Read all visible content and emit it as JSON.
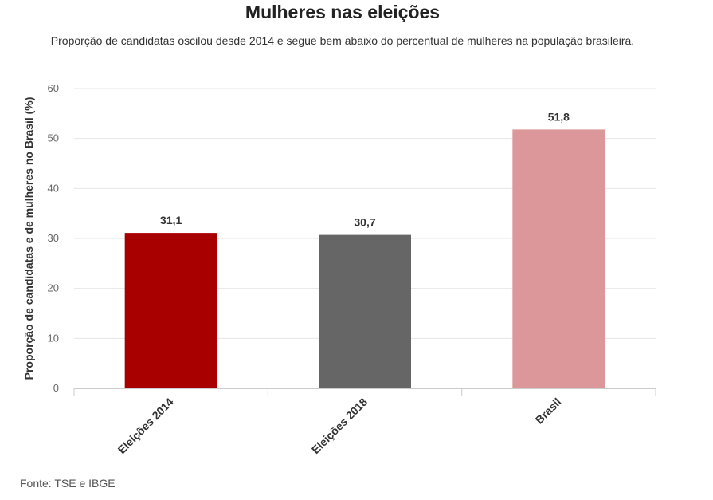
{
  "chart_data": {
    "type": "bar",
    "title": "Mulheres nas eleições",
    "subtitle": "Proporção de candidatas oscilou desde 2014 e segue bem abaixo do percentual de mulheres na população brasileira.",
    "categories": [
      "Eleições 2014",
      "Eleições 2018",
      "Brasil"
    ],
    "values": [
      31.1,
      30.7,
      51.8
    ],
    "value_labels": [
      "31,1",
      "30,7",
      "51,8"
    ],
    "colors": [
      "#a80000",
      "#666666",
      "#db9799"
    ],
    "ylabel": "Proporção de candidatas e de mulheres no Brasil (%)",
    "xlabel": "",
    "ylim": [
      0,
      60
    ],
    "yticks": [
      0,
      10,
      20,
      30,
      40,
      50,
      60
    ],
    "grid": true,
    "legend": "none",
    "source": "Fonte: TSE e IBGE"
  }
}
